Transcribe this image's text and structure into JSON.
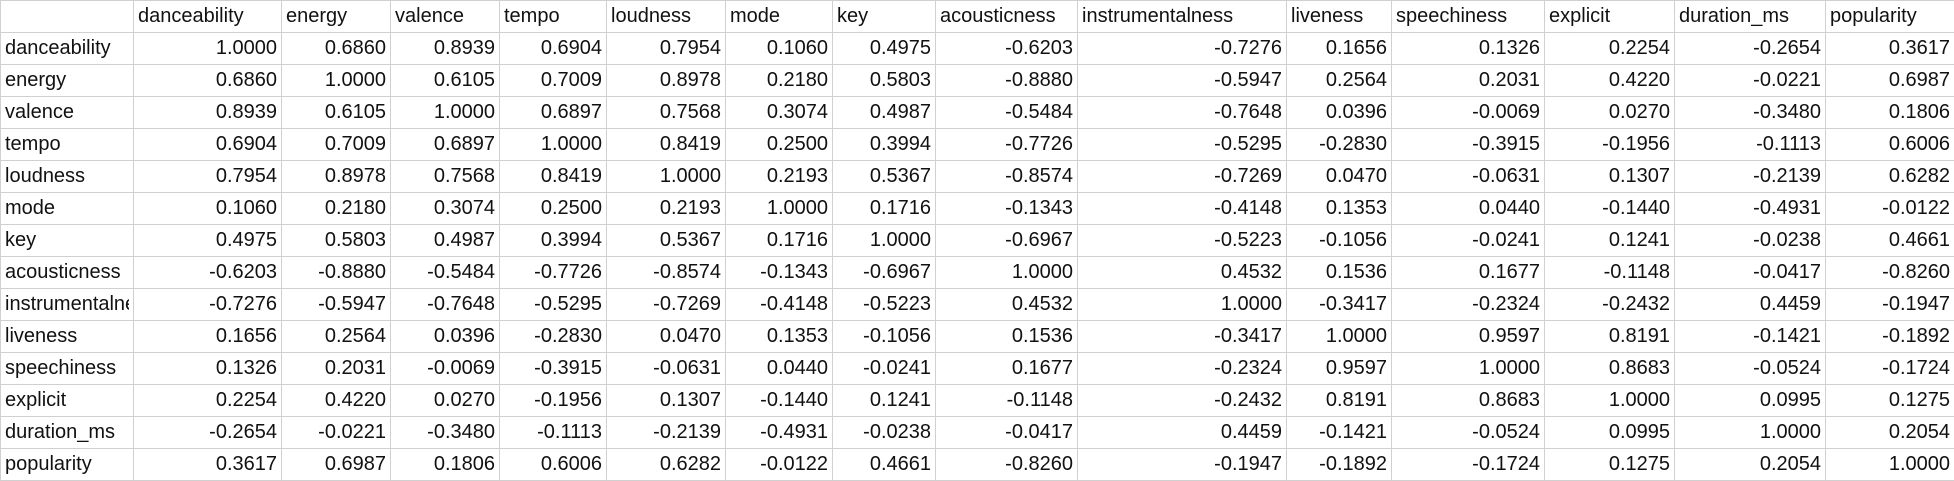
{
  "sheet": {
    "columns": [
      "",
      "danceability",
      "energy",
      "valence",
      "tempo",
      "loudness",
      "mode",
      "key",
      "acousticness",
      "instrumentalness",
      "liveness",
      "speechiness",
      "explicit",
      "duration_ms",
      "popularity"
    ],
    "rows": [
      {
        "label": "danceability",
        "values": [
          "1.0000",
          "0.6860",
          "0.8939",
          "0.6904",
          "0.7954",
          "0.1060",
          "0.4975",
          "-0.6203",
          "-0.7276",
          "0.1656",
          "0.1326",
          "0.2254",
          "-0.2654",
          "0.3617"
        ]
      },
      {
        "label": "energy",
        "values": [
          "0.6860",
          "1.0000",
          "0.6105",
          "0.7009",
          "0.8978",
          "0.2180",
          "0.5803",
          "-0.8880",
          "-0.5947",
          "0.2564",
          "0.2031",
          "0.4220",
          "-0.0221",
          "0.6987"
        ]
      },
      {
        "label": "valence",
        "values": [
          "0.8939",
          "0.6105",
          "1.0000",
          "0.6897",
          "0.7568",
          "0.3074",
          "0.4987",
          "-0.5484",
          "-0.7648",
          "0.0396",
          "-0.0069",
          "0.0270",
          "-0.3480",
          "0.1806"
        ]
      },
      {
        "label": "tempo",
        "values": [
          "0.6904",
          "0.7009",
          "0.6897",
          "1.0000",
          "0.8419",
          "0.2500",
          "0.3994",
          "-0.7726",
          "-0.5295",
          "-0.2830",
          "-0.3915",
          "-0.1956",
          "-0.1113",
          "0.6006"
        ]
      },
      {
        "label": "loudness",
        "values": [
          "0.7954",
          "0.8978",
          "0.7568",
          "0.8419",
          "1.0000",
          "0.2193",
          "0.5367",
          "-0.8574",
          "-0.7269",
          "0.0470",
          "-0.0631",
          "0.1307",
          "-0.2139",
          "0.6282"
        ]
      },
      {
        "label": "mode",
        "values": [
          "0.1060",
          "0.2180",
          "0.3074",
          "0.2500",
          "0.2193",
          "1.0000",
          "0.1716",
          "-0.1343",
          "-0.4148",
          "0.1353",
          "0.0440",
          "-0.1440",
          "-0.4931",
          "-0.0122"
        ]
      },
      {
        "label": "key",
        "values": [
          "0.4975",
          "0.5803",
          "0.4987",
          "0.3994",
          "0.5367",
          "0.1716",
          "1.0000",
          "-0.6967",
          "-0.5223",
          "-0.1056",
          "-0.0241",
          "0.1241",
          "-0.0238",
          "0.4661"
        ]
      },
      {
        "label": "acousticness",
        "values": [
          "-0.6203",
          "-0.8880",
          "-0.5484",
          "-0.7726",
          "-0.8574",
          "-0.1343",
          "-0.6967",
          "1.0000",
          "0.4532",
          "0.1536",
          "0.1677",
          "-0.1148",
          "-0.0417",
          "-0.8260"
        ]
      },
      {
        "label": "instrumentalness",
        "values": [
          "-0.7276",
          "-0.5947",
          "-0.7648",
          "-0.5295",
          "-0.7269",
          "-0.4148",
          "-0.5223",
          "0.4532",
          "1.0000",
          "-0.3417",
          "-0.2324",
          "-0.2432",
          "0.4459",
          "-0.1947"
        ]
      },
      {
        "label": "liveness",
        "values": [
          "0.1656",
          "0.2564",
          "0.0396",
          "-0.2830",
          "0.0470",
          "0.1353",
          "-0.1056",
          "0.1536",
          "-0.3417",
          "1.0000",
          "0.9597",
          "0.8191",
          "-0.1421",
          "-0.1892"
        ]
      },
      {
        "label": "speechiness",
        "values": [
          "0.1326",
          "0.2031",
          "-0.0069",
          "-0.3915",
          "-0.0631",
          "0.0440",
          "-0.0241",
          "0.1677",
          "-0.2324",
          "0.9597",
          "1.0000",
          "0.8683",
          "-0.0524",
          "-0.1724"
        ]
      },
      {
        "label": "explicit",
        "values": [
          "0.2254",
          "0.4220",
          "0.0270",
          "-0.1956",
          "0.1307",
          "-0.1440",
          "0.1241",
          "-0.1148",
          "-0.2432",
          "0.8191",
          "0.8683",
          "1.0000",
          "0.0995",
          "0.1275"
        ]
      },
      {
        "label": "duration_ms",
        "values": [
          "-0.2654",
          "-0.0221",
          "-0.3480",
          "-0.1113",
          "-0.2139",
          "-0.4931",
          "-0.0238",
          "-0.0417",
          "0.4459",
          "-0.1421",
          "-0.0524",
          "0.0995",
          "1.0000",
          "0.2054"
        ]
      },
      {
        "label": "popularity",
        "values": [
          "0.3617",
          "0.6987",
          "0.1806",
          "0.6006",
          "0.6282",
          "-0.0122",
          "0.4661",
          "-0.8260",
          "-0.1947",
          "-0.1892",
          "-0.1724",
          "0.1275",
          "0.2054",
          "1.0000"
        ]
      }
    ]
  }
}
